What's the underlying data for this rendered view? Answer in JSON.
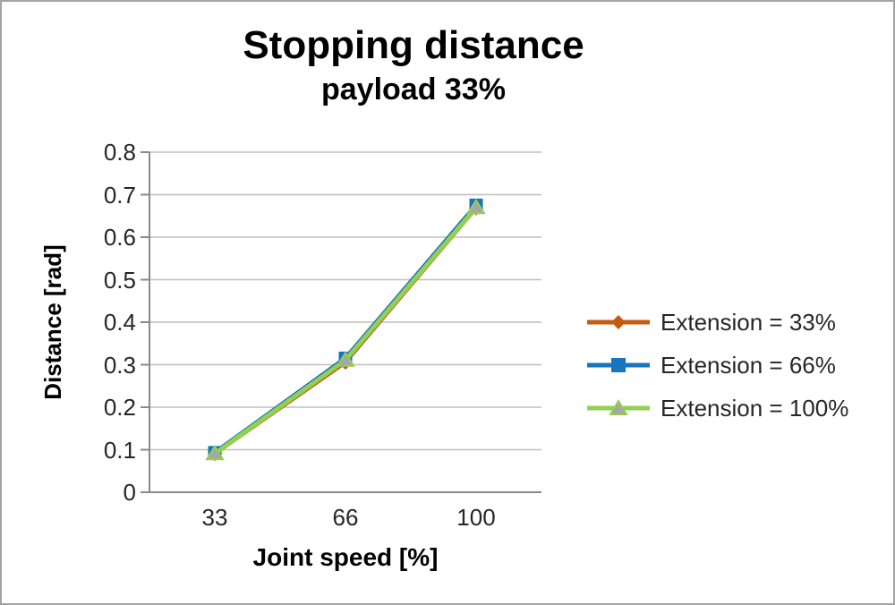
{
  "chart_data": {
    "type": "line",
    "title": "Stopping distance",
    "subtitle": "payload 33%",
    "xlabel": "Joint speed [%]",
    "ylabel": "Distance [rad]",
    "categories": [
      "33",
      "66",
      "100"
    ],
    "x_values": [
      33,
      66,
      100
    ],
    "ylim": [
      0,
      0.8
    ],
    "ytick_step": 0.1,
    "ytick_labels_top_to_bottom": [
      "0.8",
      "0.7",
      "0.6",
      "0.5",
      "0.4",
      "0.3",
      "0.2",
      "0.1",
      "0"
    ],
    "grid": "horizontal",
    "legend_position": "right",
    "series": [
      {
        "name": "Extension = 33%",
        "values": [
          0.09,
          0.305,
          0.668
        ],
        "color": "#c55a11",
        "marker": "diamond",
        "marker_color": "#c55a11",
        "line_width": 4
      },
      {
        "name": "Extension = 66%",
        "values": [
          0.093,
          0.315,
          0.675
        ],
        "color": "#1874bc",
        "marker": "square",
        "marker_color": "#1874bc",
        "line_width": 5
      },
      {
        "name": "Extension = 100%",
        "values": [
          0.091,
          0.311,
          0.67
        ],
        "color": "#92d050",
        "marker": "triangle",
        "marker_color": "#a6a6a6",
        "line_width": 5
      }
    ],
    "colors": {
      "gridline": "#bfbfbf",
      "axis": "#898989",
      "tick_text": "#262626",
      "title_text": "#000000",
      "background": "#ffffff"
    }
  }
}
